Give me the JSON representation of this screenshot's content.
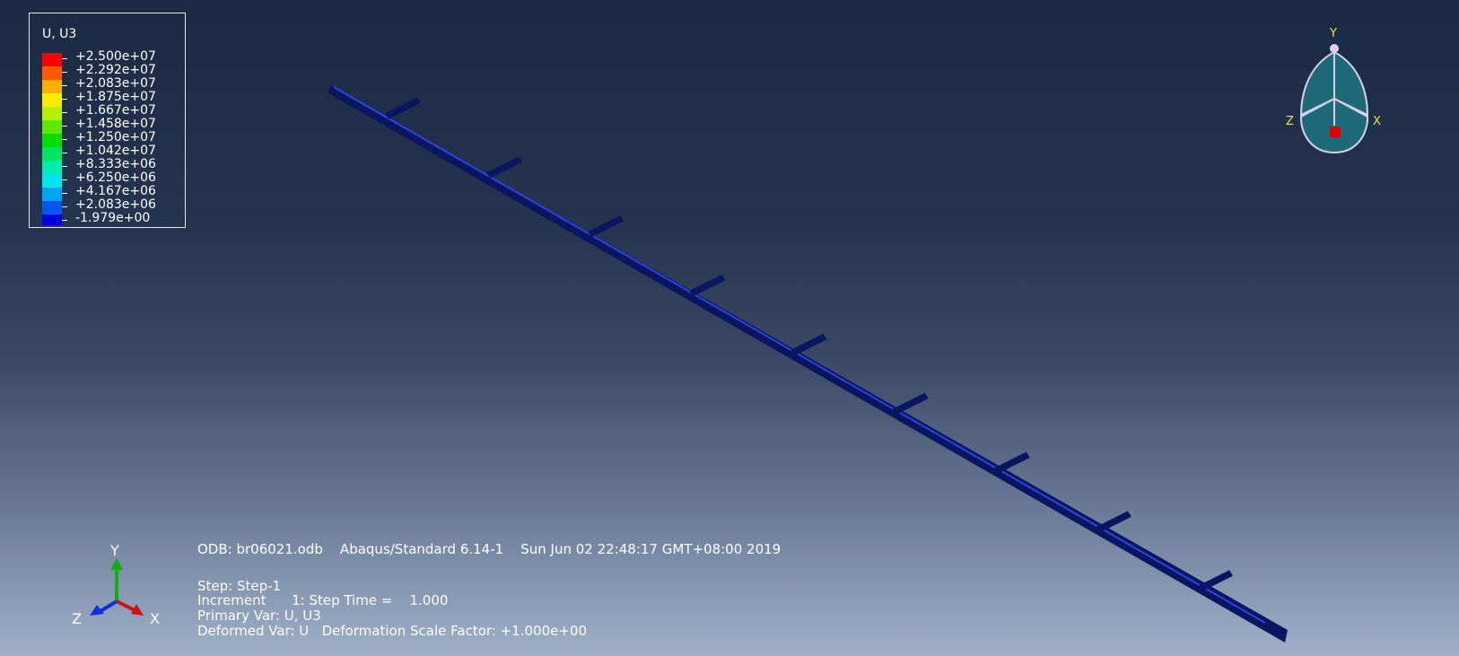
{
  "legend": {
    "title": "U, U3",
    "entries": [
      {
        "label": "+2.500e+07",
        "color": "#ff0000"
      },
      {
        "label": "+2.292e+07",
        "color": "#ff5a00"
      },
      {
        "label": "+2.083e+07",
        "color": "#ffae00"
      },
      {
        "label": "+1.875e+07",
        "color": "#f5ee00"
      },
      {
        "label": "+1.667e+07",
        "color": "#b8f000"
      },
      {
        "label": "+1.458e+07",
        "color": "#5ee800"
      },
      {
        "label": "+1.250e+07",
        "color": "#00e000"
      },
      {
        "label": "+1.042e+07",
        "color": "#00e660"
      },
      {
        "label": "+8.333e+06",
        "color": "#00ecb0"
      },
      {
        "label": "+6.250e+06",
        "color": "#00e6ec"
      },
      {
        "label": "+4.167e+06",
        "color": "#00a4f6"
      },
      {
        "label": "+2.083e+06",
        "color": "#0058ee"
      },
      {
        "label": "-1.979e+00",
        "color": "#0000e0"
      }
    ]
  },
  "info": {
    "odb_line": "ODB: br06021.odb    Abaqus/Standard 6.14-1    Sun Jun 02 22:48:17 GMT+08:00 2019",
    "step_line": "Step: Step-1",
    "increment_line": "Increment      1: Step Time =    1.000",
    "primary_var_line": "Primary Var: U, U3",
    "deformed_var_line": "Deformed Var: U   Deformation Scale Factor: +1.000e+00"
  },
  "triad": {
    "x_label": "X",
    "y_label": "Y",
    "z_label": "Z",
    "colors": {
      "x": "#d01010",
      "y": "#10b010",
      "z": "#1030e0"
    }
  },
  "view_cube": {
    "x_label": "X",
    "y_label": "Y",
    "z_label": "Z",
    "fill_color": "#1f6a78",
    "outline_color": "#d8cfe8",
    "center_color": "#e00000"
  },
  "model": {
    "color": "#0a1660",
    "edge_color": "#2a44e8",
    "bracket_count": 9
  }
}
